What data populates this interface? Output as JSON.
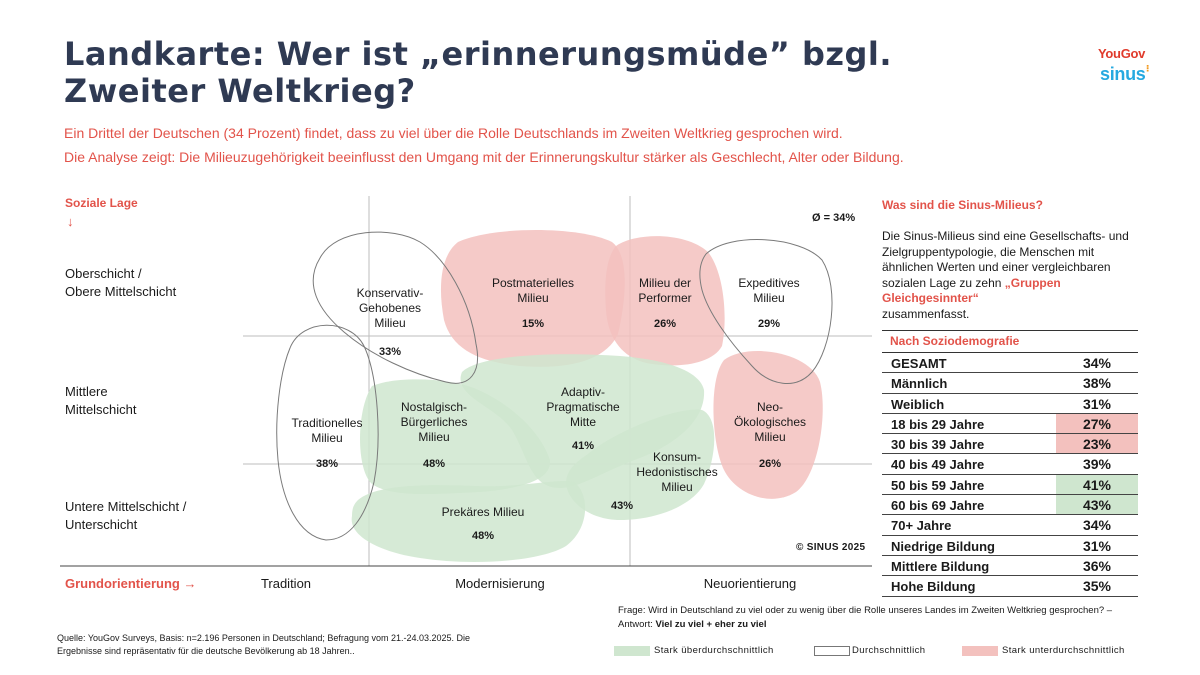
{
  "header": {
    "title": "Landkarte: Wer ist „erinnerungsmüde” bzgl. Zweiter Weltkrieg?",
    "subtitle_1": "Ein Drittel der Deutschen (34 Prozent) findet, dass zu viel über die Rolle Deutschlands im Zweiten Weltkrieg gesprochen wird.",
    "subtitle_2": "Die Analyse zeigt: Die Milieuzugehörigkeit beeinflusst den Umgang mit der Erinnerungskultur stärker als Geschlecht, Alter oder Bildung.",
    "brand_1": "YouGov",
    "brand_2": "sinus"
  },
  "colors": {
    "above": "#cfe6cf",
    "average": "#ffffff",
    "below": "#f3c1be",
    "accent": "#e2534a",
    "title": "#2f3a53"
  },
  "chart_data": {
    "type": "milieu-map",
    "ylabel": "Soziale Lage",
    "y_arrow": "↓",
    "xlabel": "Grundorientierung →",
    "y_categories": [
      "Oberschicht /\nObere Mittelschicht",
      "Mittlere\nMittelschicht",
      "Untere Mittelschicht /\nUnterschicht"
    ],
    "x_categories": [
      "Tradition",
      "Modernisierung",
      "Neuorientierung"
    ],
    "average_label": "Ø = 34%",
    "copyright": "© SINUS 2025",
    "unit": "%",
    "milieus": [
      {
        "name": "Konservativ-\nGehobenes\nMilieu",
        "value": 33,
        "category": "average"
      },
      {
        "name": "Postmaterielles\nMilieu",
        "value": 15,
        "category": "below"
      },
      {
        "name": "Milieu der\nPerformer",
        "value": 26,
        "category": "below"
      },
      {
        "name": "Expeditives\nMilieu",
        "value": 29,
        "category": "average"
      },
      {
        "name": "Traditionelles\nMilieu",
        "value": 38,
        "category": "average"
      },
      {
        "name": "Nostalgisch-\nBürgerliches\nMilieu",
        "value": 48,
        "category": "above"
      },
      {
        "name": "Adaptiv-\nPragmatische\nMitte",
        "value": 41,
        "category": "above"
      },
      {
        "name": "Neo-\nÖkologisches\nMilieu",
        "value": 26,
        "category": "below"
      },
      {
        "name": "Konsum-\nHedonistisches\nMilieu",
        "value": 43,
        "category": "above"
      },
      {
        "name": "Prekäres Milieu",
        "value": 48,
        "category": "above"
      }
    ],
    "legend": [
      {
        "label": "Stark überdurchschnittlich",
        "category": "above"
      },
      {
        "label": "Durchschnittlich",
        "category": "average"
      },
      {
        "label": "Stark unterdurchschnittlich",
        "category": "below"
      }
    ]
  },
  "sidebar": {
    "title": "Was sind die Sinus-Milieus?",
    "text": "Die Sinus-Milieus sind eine Gesellschafts- und Zielgruppentypologie, die Menschen mit ähnlichen Werten und einer vergleichbaren sozialen Lage zu zehn",
    "text_highlight": "„Gruppen Gleichgesinnter“",
    "text_end": "zusammenfasst.",
    "table_title": "Nach Soziodemografie",
    "rows": [
      {
        "label": "GESAMT",
        "value": "34%",
        "category": "average"
      },
      {
        "label": "Männlich",
        "value": "38%",
        "category": "average"
      },
      {
        "label": "Weiblich",
        "value": "31%",
        "category": "average"
      },
      {
        "label": "18 bis 29 Jahre",
        "value": "27%",
        "category": "below"
      },
      {
        "label": "30 bis 39 Jahre",
        "value": "23%",
        "category": "below"
      },
      {
        "label": "40 bis 49 Jahre",
        "value": "39%",
        "category": "average"
      },
      {
        "label": "50 bis 59 Jahre",
        "value": "41%",
        "category": "above"
      },
      {
        "label": "60 bis 69 Jahre",
        "value": "43%",
        "category": "above"
      },
      {
        "label": "70+ Jahre",
        "value": "34%",
        "category": "average"
      },
      {
        "label": "Niedrige Bildung",
        "value": "31%",
        "category": "average"
      },
      {
        "label": "Mittlere Bildung",
        "value": "36%",
        "category": "average"
      },
      {
        "label": "Hohe Bildung",
        "value": "35%",
        "category": "average"
      }
    ]
  },
  "footer": {
    "frage": "Frage: Wird in Deutschland zu viel oder zu wenig über die Rolle unseres Landes im Zweiten Weltkrieg gesprochen? – Antwort:",
    "antwort": "Viel zu viel + eher zu viel",
    "quelle": "Quelle: YouGov Surveys, Basis: n=2.196 Personen in Deutschland; Befragung vom 21.-24.03.2025. Die Ergebnisse sind repräsentativ für die deutsche Bevölkerung ab 18 Jahren.."
  }
}
